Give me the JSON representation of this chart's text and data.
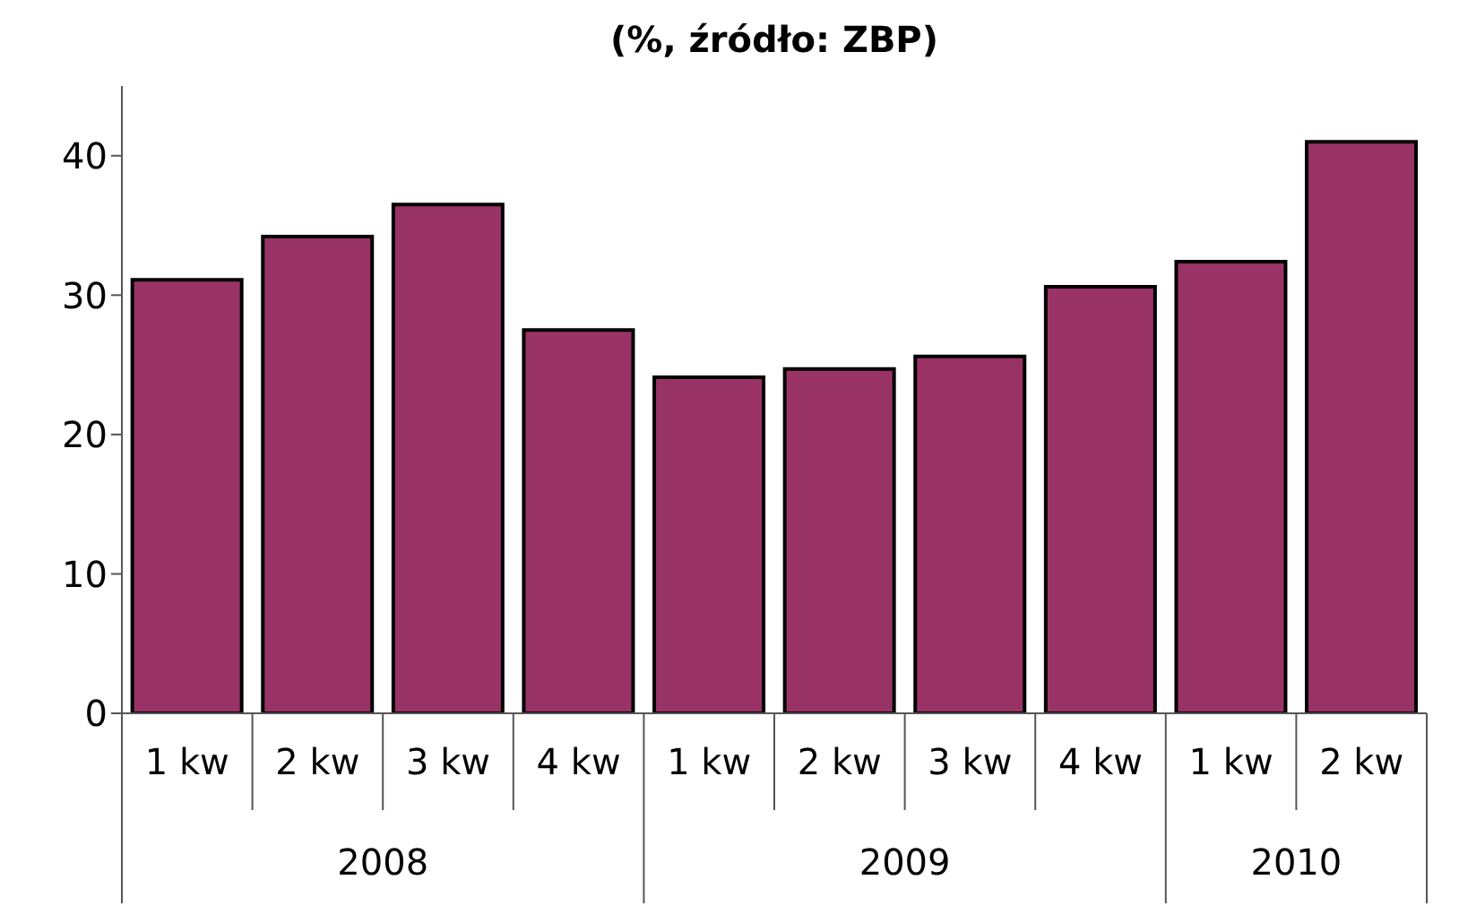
{
  "chart_data": {
    "type": "bar",
    "title": "(%, źródło: ZBP)",
    "categories": [
      "1 kw",
      "2 kw",
      "3 kw",
      "4 kw",
      "1 kw",
      "2 kw",
      "3 kw",
      "4 kw",
      "1 kw",
      "2 kw"
    ],
    "values": [
      31.1,
      34.2,
      36.5,
      27.5,
      24.1,
      24.7,
      25.6,
      30.6,
      32.4,
      41.0
    ],
    "color": "#993366",
    "annotations": [
      "2008",
      "2009",
      "2010"
    ],
    "ylim": [
      0,
      45
    ],
    "yticks": [
      0,
      10,
      20,
      30,
      40
    ],
    "grid": false,
    "legend": false
  }
}
